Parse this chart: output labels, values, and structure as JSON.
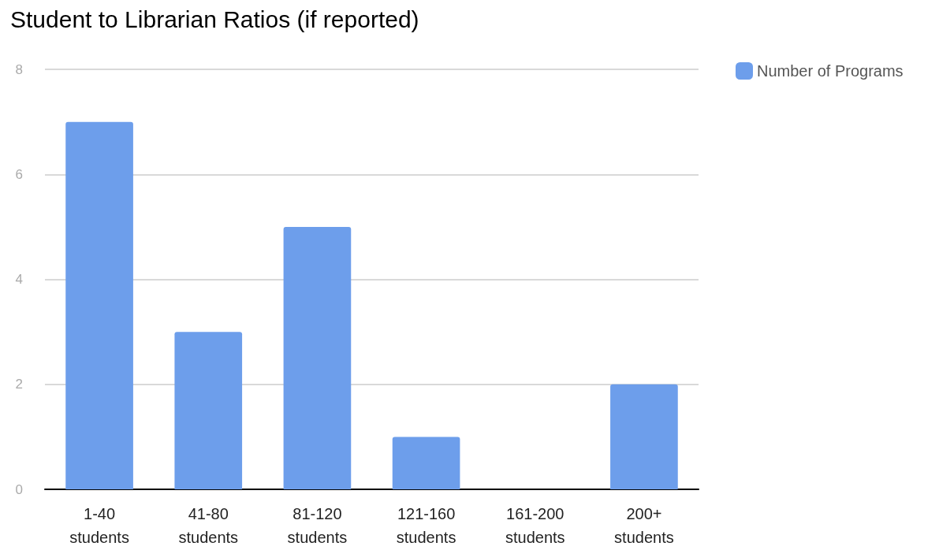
{
  "chart_data": {
    "type": "bar",
    "title": "Student to Librarian Ratios (if reported)",
    "categories": [
      "1-40 students",
      "41-80 students",
      "81-120 students",
      "121-160 students",
      "161-200 students",
      "200+ students"
    ],
    "series": [
      {
        "name": "Number of Programs",
        "color": "#6d9eeb",
        "values": [
          7,
          3,
          5,
          1,
          0,
          2
        ]
      }
    ],
    "ylim": [
      0,
      8
    ],
    "yticks": [
      0,
      2,
      4,
      6,
      8
    ],
    "grid": "y",
    "legend": "top right"
  }
}
